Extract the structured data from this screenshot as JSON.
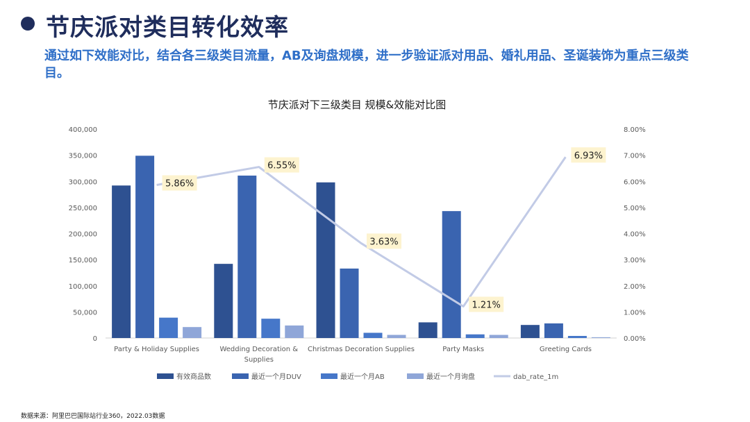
{
  "header": {
    "title": "节庆派对类目转化效率",
    "subtitle": "通过如下效能对比，结合各三级类目流量，AB及询盘规模，进一步验证派对用品、婚礼用品、圣诞装饰为重点三级类目。"
  },
  "footer": {
    "source": "数据来源：阿里巴巴国际站行业360，2022.03数据"
  },
  "colors": {
    "series": [
      "#2e5191",
      "#3a64b0",
      "#4677c9",
      "#8fa6d8"
    ],
    "line": "#c2cbe6",
    "label_bg": "#fdf3cf",
    "axis_text": "#595959",
    "title_text": "#1a1a1a"
  },
  "chart_data": {
    "type": "bar",
    "title": "节庆派对下三级类目 规模&效能对比图",
    "categories": [
      [
        "Party & Holiday Supplies"
      ],
      [
        "Wedding Decoration &",
        "Supplies"
      ],
      [
        "Christmas Decoration Supplies"
      ],
      [
        "Party Masks"
      ],
      [
        "Greeting Cards"
      ]
    ],
    "series": [
      {
        "name": "有效商品数",
        "values": [
          292000,
          142000,
          298000,
          30000,
          25000
        ]
      },
      {
        "name": "最近一个月DUV",
        "values": [
          349000,
          311000,
          133000,
          243000,
          28000
        ]
      },
      {
        "name": "最近一个月AB",
        "values": [
          39000,
          37000,
          10000,
          7000,
          4000
        ]
      },
      {
        "name": "最近一个月询盘",
        "values": [
          21000,
          24000,
          6000,
          6000,
          1500
        ]
      }
    ],
    "line_series": {
      "name": "dab_rate_1m",
      "values": [
        5.86,
        6.55,
        3.63,
        1.21,
        6.93
      ],
      "labels": [
        "5.86%",
        "6.55%",
        "3.63%",
        "1.21%",
        "6.93%"
      ],
      "axis": "right"
    },
    "y_left": {
      "ylim": [
        0,
        400000
      ],
      "ticks": [
        "0",
        "50,000",
        "100,000",
        "150,000",
        "200,000",
        "250,000",
        "300,000",
        "350,000",
        "400,000"
      ]
    },
    "y_right": {
      "ylim": [
        0,
        8
      ],
      "ticks": [
        "0.00%",
        "1.00%",
        "2.00%",
        "3.00%",
        "4.00%",
        "5.00%",
        "6.00%",
        "7.00%",
        "8.00%"
      ]
    },
    "legend": {
      "position": "bottom",
      "entries": [
        "有效商品数",
        "最近一个月DUV",
        "最近一个月AB",
        "最近一个月询盘",
        "dab_rate_1m"
      ]
    },
    "grid": false
  }
}
